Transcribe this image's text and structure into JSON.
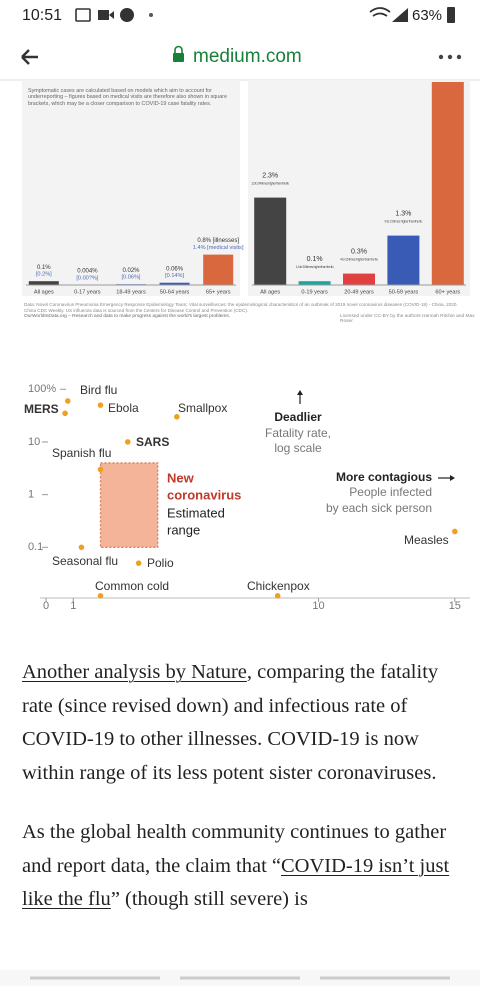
{
  "status_bar": {
    "time": "10:51",
    "battery": "63%"
  },
  "browser": {
    "url": "medium.com"
  },
  "figure_1": {
    "note": "Symptomatic cases are calculated based on models which aim to account for underreporting – figures based on medical visits are therefore also shown in square brackets, which may be a closer comparison to COVID-19 case fatality rates.",
    "panels": [
      {
        "bars": [
          {
            "category": "All ages",
            "value": 0.1,
            "label": "0.1%",
            "sub_label": "[0.2%]",
            "color": "#444444"
          },
          {
            "category": "0-17 years",
            "value": 0.004,
            "label": "0.004%",
            "sub_label": "[0.00?%]",
            "color": "#444444"
          },
          {
            "category": "18-49 years",
            "value": 0.02,
            "label": "0.02%",
            "sub_label": "[0.06%]",
            "color": "#3a5bb5"
          },
          {
            "category": "50-64 years",
            "value": 0.06,
            "label": "0.06%",
            "sub_label": "[0.14%]",
            "color": "#3a5bb5"
          },
          {
            "category": "65+ years",
            "value": 0.8,
            "label": "0.8% [illnesses]",
            "sub_label": "1.4% [medical visits]",
            "color": "#d9683e"
          }
        ]
      },
      {
        "bars": [
          {
            "category": "All ages",
            "value": 2.3,
            "label": "2.3%",
            "sub_label": "12 to 24 times higher than the flu",
            "color": "#444444"
          },
          {
            "category": "0-19 years",
            "value": 0.1,
            "label": "0.1%",
            "sub_label": "1.4 to 3.5 times higher than the flu",
            "color": "#1aa6a0"
          },
          {
            "category": "20-49 years",
            "value": 0.3,
            "label": "0.3%",
            "sub_label": "4 to 15 times higher than the flu",
            "color": "#e0403f"
          },
          {
            "category": "50-59 years",
            "value": 1.3,
            "label": "1.3%",
            "sub_label": "9 to 21 times higher than the flu",
            "color": "#3a5bb5"
          },
          {
            "category": "60+ years",
            "value": 5.5,
            "color": "#d9683e"
          }
        ]
      }
    ],
    "source": "Data: Novel Coronavirus Pneumonia Emergency Response Epidemiology Team; Vital surveillances: the epidemiological characteristics of an outbreak of 2019 novel coronavirus diseases (COVID-19) - China, 2020. China CDC Weekly. US influenza data is sourced from the Centers for Disease Control and Prevention (CDC).",
    "footer": "OurWorldInData.org – Research and data to make progress against the world's largest problems.",
    "license": "Licensed under CC-BY by the authors Hannah Ritchie and Max Roser."
  },
  "figure_2": {
    "type": "scatter",
    "log_y": true,
    "xlim": [
      0,
      15.3
    ],
    "ylim": [
      0.01,
      150
    ],
    "xticks": [
      0,
      1,
      10,
      15
    ],
    "yticks": [
      {
        "value": 100,
        "label": "100%"
      },
      10,
      1,
      0.1
    ],
    "color": "#f0a020",
    "points": [
      {
        "name": "MERS",
        "x": 0.7,
        "y": 35
      },
      {
        "name": "Bird flu",
        "x": 0.8,
        "y": 60
      },
      {
        "name": "Ebola",
        "x": 2,
        "y": 50
      },
      {
        "name": "Smallpox",
        "x": 4.8,
        "y": 30
      },
      {
        "name": "SARS",
        "x": 3,
        "y": 10
      },
      {
        "name": "Spanish flu",
        "x": 2,
        "y": 3
      },
      {
        "name": "Seasonal flu",
        "x": 1.3,
        "y": 0.1
      },
      {
        "name": "Polio",
        "x": 3.4,
        "y": 0.05
      },
      {
        "name": "Common cold",
        "x": 2,
        "y": 0.012
      },
      {
        "name": "Chickenpox",
        "x": 8.5,
        "y": 0.012
      },
      {
        "name": "Measles",
        "x": 15,
        "y": 0.2
      }
    ],
    "coronavirus": {
      "title": [
        "New",
        "coronavirus"
      ],
      "subtitle": [
        "Estimated",
        "range"
      ],
      "x": [
        2,
        4.1
      ],
      "y": [
        0.1,
        4
      ],
      "color": "#f4b49a"
    },
    "y_annotation": {
      "title": "Deadlier",
      "lines": [
        "Fatality rate,",
        "log scale"
      ]
    },
    "x_annotation": {
      "title": "More contagious",
      "lines": [
        "People infected",
        "by each sick person"
      ]
    }
  },
  "article": {
    "paragraphs": [
      [
        {
          "text": "Another analysis by Nature",
          "link": true
        },
        {
          "text": ", comparing the fatality rate (since revised down) and infectious rate of COVID-19 to other illnesses. COVID-19 is now within range of its less potent sister coronaviruses."
        }
      ],
      [
        {
          "text": "As the global health community continues to gather and report data, the claim that “"
        },
        {
          "text": "COVID-19 isn’t just like the flu",
          "link": true
        },
        {
          "text": "” (though still severe) is"
        }
      ]
    ]
  }
}
